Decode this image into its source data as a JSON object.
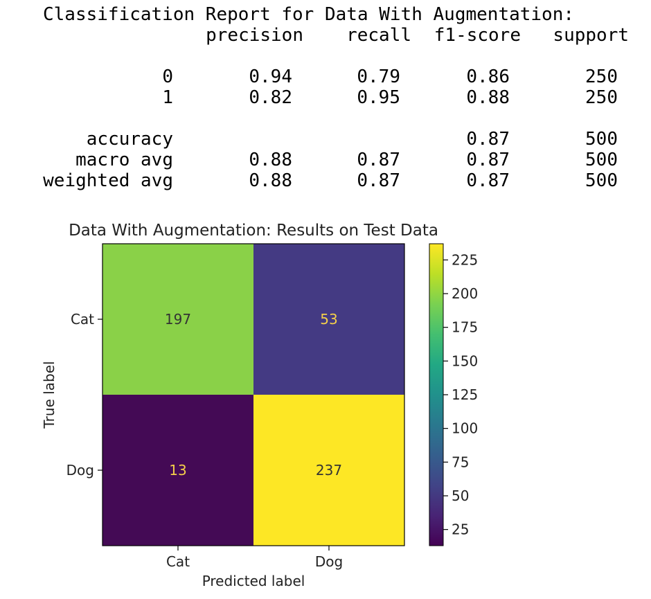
{
  "report": {
    "title": "Classification Report for Data With Augmentation:",
    "headers": [
      "precision",
      "recall",
      "f1-score",
      "support"
    ],
    "rows": [
      {
        "label": "0",
        "values": [
          "0.94",
          "0.79",
          "0.86",
          "250"
        ]
      },
      {
        "label": "1",
        "values": [
          "0.82",
          "0.95",
          "0.88",
          "250"
        ]
      },
      {
        "label": "accuracy",
        "values": [
          "",
          "",
          "0.87",
          "500"
        ]
      },
      {
        "label": "macro avg",
        "values": [
          "0.88",
          "0.87",
          "0.87",
          "500"
        ]
      },
      {
        "label": "weighted avg",
        "values": [
          "0.88",
          "0.87",
          "0.87",
          "500"
        ]
      }
    ]
  },
  "chart_data": {
    "type": "heatmap",
    "title": "Data With Augmentation: Results on Test Data",
    "xlabel": "Predicted label",
    "ylabel": "True label",
    "x_categories": [
      "Cat",
      "Dog"
    ],
    "y_categories": [
      "Cat",
      "Dog"
    ],
    "matrix": [
      [
        197,
        53
      ],
      [
        13,
        237
      ]
    ],
    "colormap": "viridis",
    "colorbar": {
      "min": 13,
      "max": 237,
      "ticks": [
        25,
        50,
        75,
        100,
        125,
        150,
        175,
        200,
        225
      ]
    },
    "colors": {
      "197": "#8ad148",
      "53": "#443a83",
      "13": "#440a55",
      "237": "#fde725",
      "text_dark": "#333333",
      "text_light": "#f5d04a"
    }
  }
}
